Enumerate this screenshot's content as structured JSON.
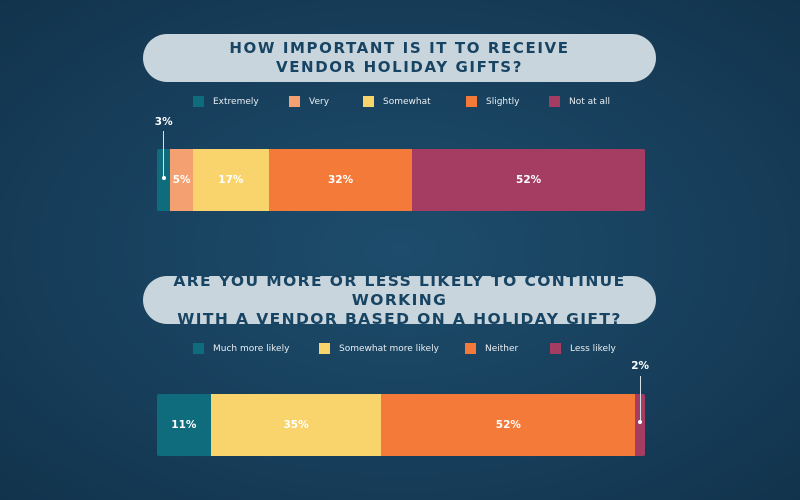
{
  "colors": {
    "teal": "#0f6c7c",
    "peach": "#f5a070",
    "yellow": "#f9d46c",
    "orange": "#f47a3a",
    "plum": "#a53d62",
    "background": "#173f5c",
    "title_pill": "#c9d5dc"
  },
  "chart_data": [
    {
      "type": "bar",
      "orientation": "horizontal-stacked",
      "title": [
        "HOW IMPORTANT IS IT TO RECEIVE",
        "VENDOR HOLIDAY GIFTS?"
      ],
      "legend_position": "top",
      "series": [
        {
          "name": "Extremely",
          "value": 3,
          "label": "3%",
          "color": "#0f6c7c"
        },
        {
          "name": "Very",
          "value": 5,
          "label": "5%",
          "color": "#f5a070"
        },
        {
          "name": "Somewhat",
          "value": 17,
          "label": "17%",
          "color": "#f9d46c"
        },
        {
          "name": "Slightly",
          "value": 32,
          "label": "32%",
          "color": "#f47a3a"
        },
        {
          "name": "Not at all",
          "value": 52,
          "label": "52%",
          "color": "#a53d62"
        }
      ]
    },
    {
      "type": "bar",
      "orientation": "horizontal-stacked",
      "title": [
        "ARE YOU MORE OR LESS LIKELY TO CONTINUE WORKING",
        "WITH A VENDOR BASED ON A HOLIDAY GIFT?"
      ],
      "legend_position": "top",
      "series": [
        {
          "name": "Much more likely",
          "value": 11,
          "label": "11%",
          "color": "#0f6c7c"
        },
        {
          "name": "Somewhat more likely",
          "value": 35,
          "label": "35%",
          "color": "#f9d46c"
        },
        {
          "name": "Neither",
          "value": 52,
          "label": "52%",
          "color": "#f47a3a"
        },
        {
          "name": "Less likely",
          "value": 2,
          "label": "2%",
          "color": "#a53d62"
        }
      ]
    }
  ]
}
